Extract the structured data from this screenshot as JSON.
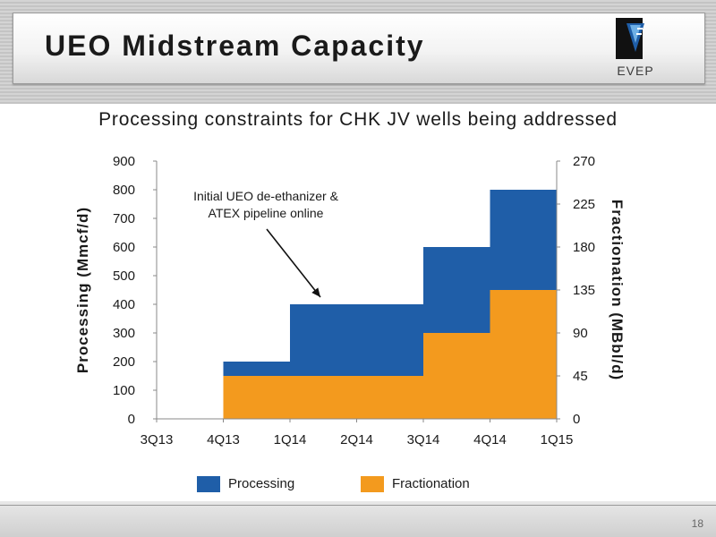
{
  "slide": {
    "title": "UEO Midstream Capacity",
    "subtitle": "Processing constraints for CHK JV wells being addressed",
    "page_number": "18",
    "logo_text": "EVEP"
  },
  "chart_data": {
    "type": "area",
    "step": true,
    "categories": [
      "3Q13",
      "4Q13",
      "1Q14",
      "2Q14",
      "3Q14",
      "4Q14",
      "1Q15"
    ],
    "series": [
      {
        "name": "Processing",
        "axis": "left",
        "values": [
          0,
          200,
          400,
          400,
          600,
          800,
          800
        ],
        "color": "#1f5ea8"
      },
      {
        "name": "Fractionation",
        "axis": "right",
        "values": [
          0,
          45,
          45,
          45,
          90,
          135,
          135
        ],
        "color": "#f39a1e"
      }
    ],
    "y_left": {
      "label": "Processing (Mmcf/d)",
      "min": 0,
      "max": 900,
      "ticks": [
        0,
        100,
        200,
        300,
        400,
        500,
        600,
        700,
        800,
        900
      ]
    },
    "y_right": {
      "label": "Fractionation (MBbl/d)",
      "min": 0,
      "max": 270,
      "ticks": [
        0,
        45,
        90,
        135,
        180,
        225,
        270
      ]
    },
    "annotation": {
      "lines": [
        "Initial UEO de-ethanizer &",
        "ATEX pipeline online"
      ],
      "category": "1Q14"
    },
    "grid": false,
    "legend_position": "bottom"
  }
}
